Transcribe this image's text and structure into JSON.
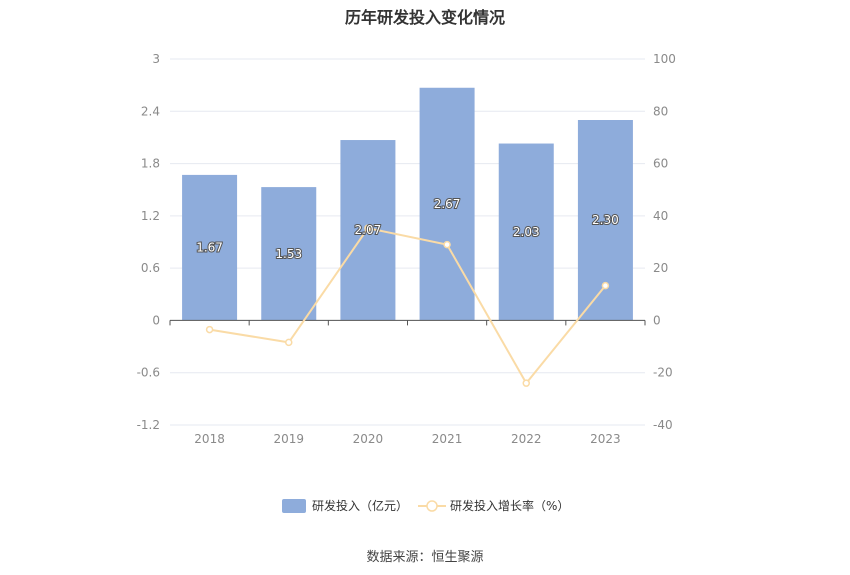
{
  "title": "历年研发投入变化情况",
  "source": "数据来源：恒生聚源",
  "colors": {
    "bar": "#8eacdb",
    "line": "#fadba6",
    "grid": "#e6e9f0",
    "axis": "#555555"
  },
  "chart_data": {
    "type": "bar",
    "title": "历年研发投入变化情况",
    "categories": [
      "2018",
      "2019",
      "2020",
      "2021",
      "2022",
      "2023"
    ],
    "series": [
      {
        "name": "研发投入（亿元）",
        "type": "bar",
        "axis": "left",
        "values": [
          1.67,
          1.53,
          2.07,
          2.67,
          2.03,
          2.3
        ],
        "labels": [
          "1.67",
          "1.53",
          "2.07",
          "2.67",
          "2.03",
          "2.30"
        ]
      },
      {
        "name": "研发投入增长率（%）",
        "type": "line",
        "axis": "right",
        "values": [
          -3.5,
          -8.4,
          35.3,
          29.0,
          -24.0,
          13.3
        ]
      }
    ],
    "y_left": {
      "ticks": [
        "3",
        "2.4",
        "1.8",
        "1.2",
        "0.6",
        "0",
        "-0.6",
        "-1.2"
      ],
      "ylim": [
        -1.2,
        3
      ]
    },
    "y_right": {
      "ticks": [
        "100",
        "80",
        "60",
        "40",
        "20",
        "0",
        "-20",
        "-40"
      ],
      "ylim": [
        -40,
        100
      ]
    },
    "grid": true,
    "legend": "bottom"
  }
}
